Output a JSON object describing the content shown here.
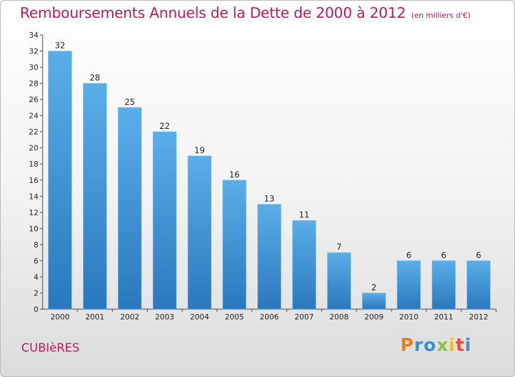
{
  "header": {
    "title": "Remboursements Annuels de la Dette de 2000 à 2012",
    "unit": "(en milliers d'€)"
  },
  "footer": {
    "city": "CUBIèRES",
    "logo": "Proxiti",
    "logo_colors": [
      "#e67e22",
      "#3b8fd9",
      "#3b8fd9",
      "#8bc34a",
      "#f1c40f",
      "#e74c3c",
      "#3b8fd9"
    ]
  },
  "colors": {
    "bar_top": "#5aaee8",
    "bar_bottom": "#2a78bd",
    "title": "#c2185b"
  },
  "chart_data": {
    "type": "bar",
    "title": "Remboursements Annuels de la Dette de 2000 à 2012",
    "categories": [
      "2000",
      "2001",
      "2002",
      "2003",
      "2004",
      "2005",
      "2006",
      "2007",
      "2008",
      "2009",
      "2010",
      "2011",
      "2012"
    ],
    "values": [
      32,
      28,
      25,
      22,
      19,
      16,
      13,
      11,
      7,
      2,
      6,
      6,
      6
    ],
    "ylim": [
      0,
      34
    ],
    "yticks": [
      0,
      2,
      4,
      6,
      8,
      10,
      12,
      14,
      16,
      18,
      20,
      22,
      24,
      26,
      28,
      30,
      32,
      34
    ],
    "grid": false,
    "legend": "none"
  }
}
